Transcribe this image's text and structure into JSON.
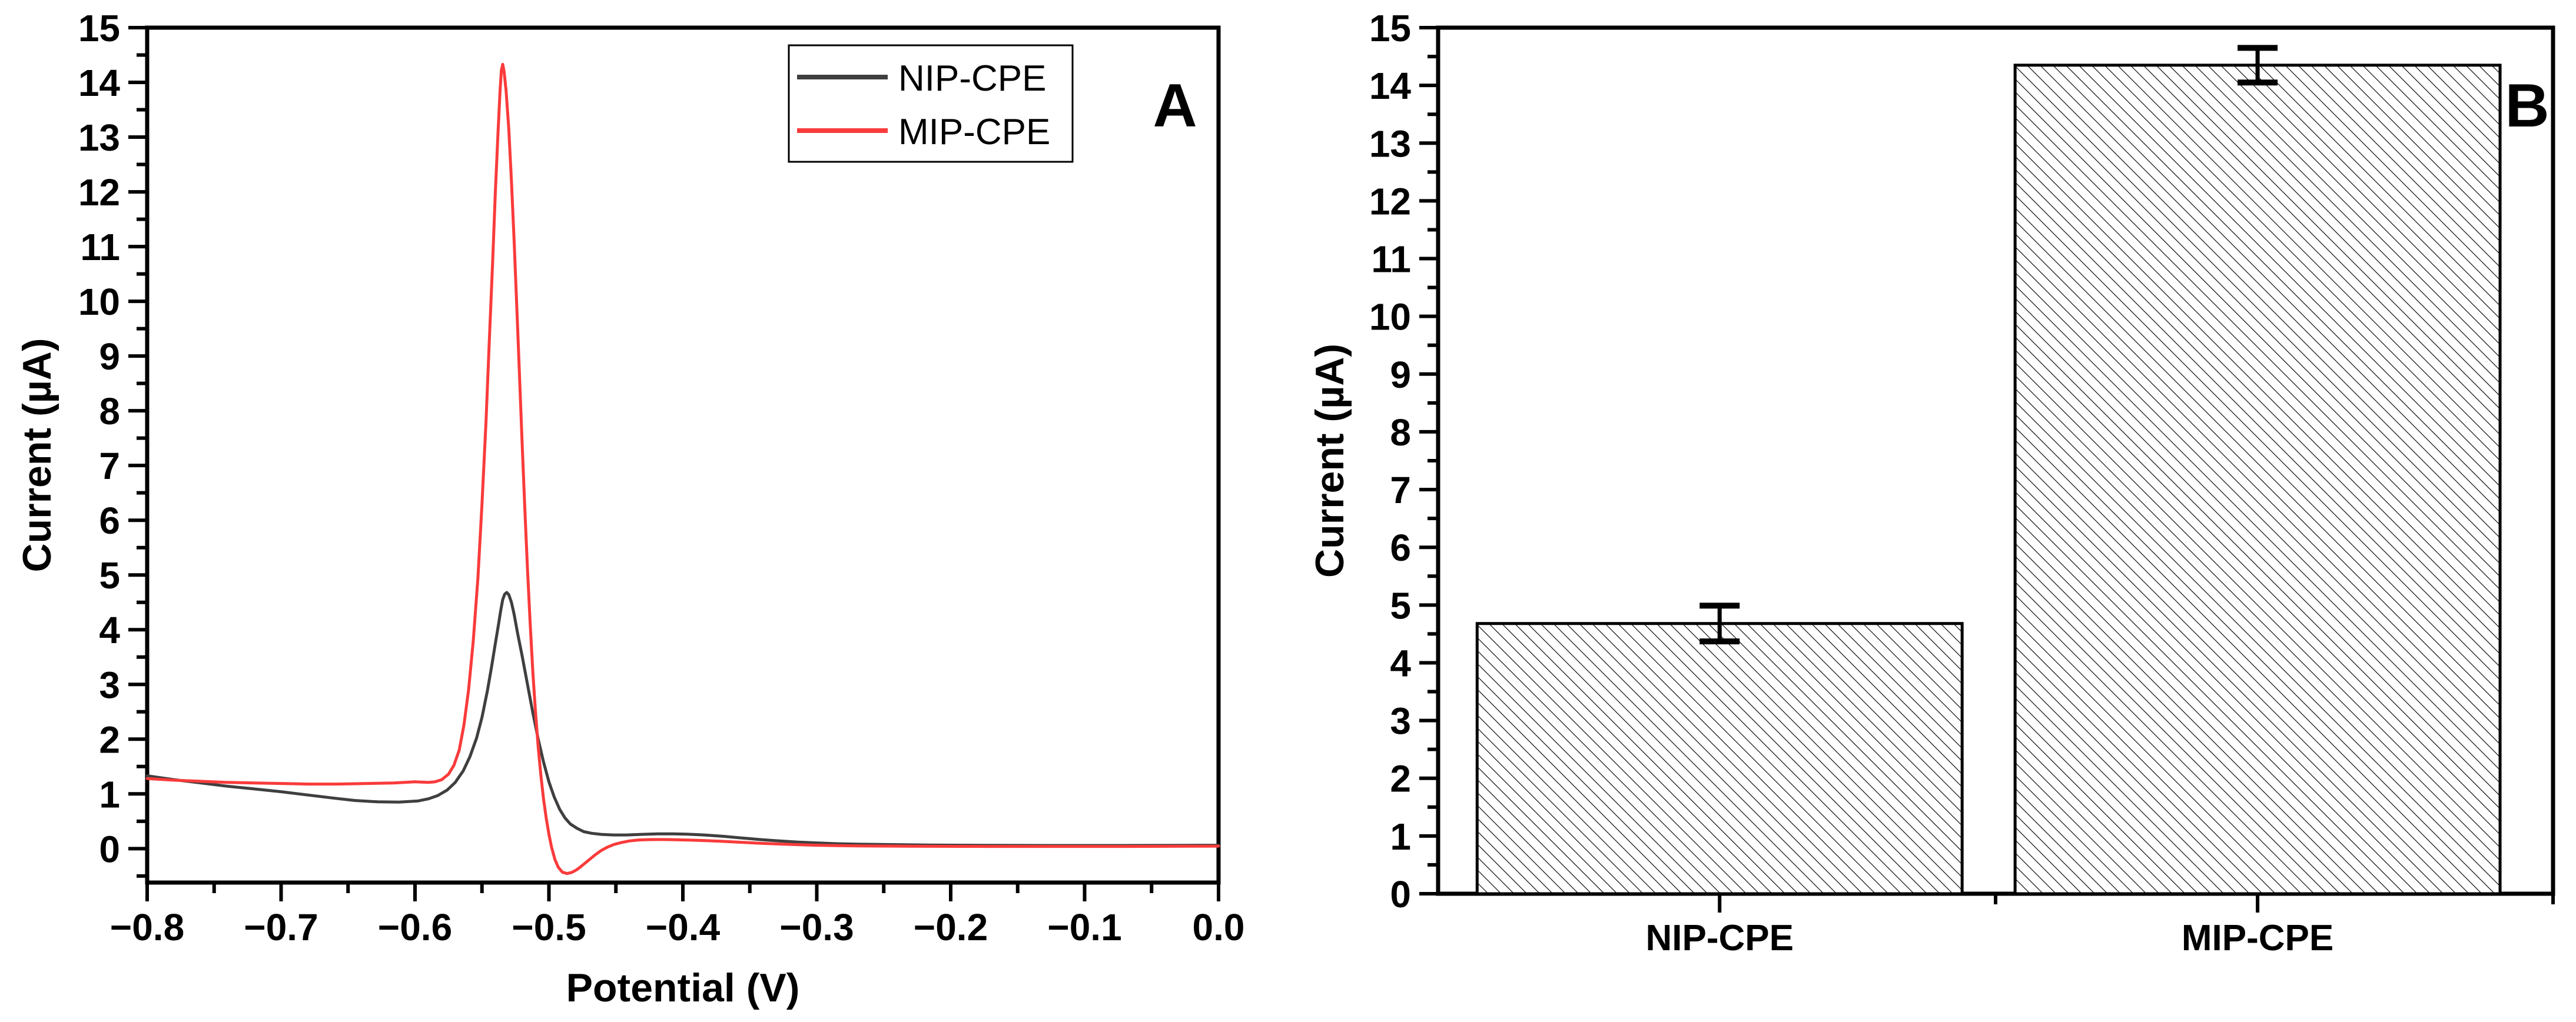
{
  "figure": {
    "background": "#ffffff",
    "panelA": {
      "panel_letter": "A",
      "x_axis_title": "Potential (V)",
      "y_axis_title": "Current (µA)",
      "x_tick_labels": [
        "−0.8",
        "−0.7",
        "−0.6",
        "−0.5",
        "−0.4",
        "−0.3",
        "−0.2",
        "−0.1",
        "0.0"
      ],
      "y_tick_labels": [
        "0",
        "1",
        "2",
        "3",
        "4",
        "5",
        "6",
        "7",
        "8",
        "9",
        "10",
        "11",
        "12",
        "13",
        "14",
        "15"
      ],
      "legend": {
        "entries": [
          {
            "label": "NIP-CPE",
            "color": "#3f3f3f"
          },
          {
            "label": "MIP-CPE",
            "color": "#f93b3b"
          }
        ]
      }
    },
    "panelB": {
      "panel_letter": "B",
      "y_axis_title": "Current (µA)",
      "y_tick_labels": [
        "0",
        "1",
        "2",
        "3",
        "4",
        "5",
        "6",
        "7",
        "8",
        "9",
        "10",
        "11",
        "12",
        "13",
        "14",
        "15"
      ],
      "category_labels": [
        "NIP-CPE",
        "MIP-CPE"
      ]
    }
  },
  "chart_data": [
    {
      "type": "line",
      "panel": "A",
      "title": "",
      "xlabel": "Potential (V)",
      "ylabel": "Current (µA)",
      "xlim": [
        -0.8,
        0.0
      ],
      "ylim": [
        -0.62,
        15
      ],
      "xticks": [
        -0.8,
        -0.7,
        -0.6,
        -0.5,
        -0.4,
        -0.3,
        -0.2,
        -0.1,
        0.0
      ],
      "yticks": [
        0,
        1,
        2,
        3,
        4,
        5,
        6,
        7,
        8,
        9,
        10,
        11,
        12,
        13,
        14,
        15
      ],
      "minor_x_step": 0.05,
      "minor_y_step": 0.5,
      "grid": false,
      "legend_position": "top-left",
      "series": [
        {
          "name": "NIP-CPE",
          "color": "#3f3f3f",
          "peak": {
            "x": -0.53,
            "y": 4.68
          },
          "points": [
            [
              -0.8,
              1.33
            ],
            [
              -0.78,
              1.26
            ],
            [
              -0.76,
              1.2
            ],
            [
              -0.74,
              1.14
            ],
            [
              -0.72,
              1.09
            ],
            [
              -0.7,
              1.04
            ],
            [
              -0.68,
              0.98
            ],
            [
              -0.66,
              0.92
            ],
            [
              -0.645,
              0.88
            ],
            [
              -0.628,
              0.855
            ],
            [
              -0.612,
              0.85
            ],
            [
              -0.598,
              0.87
            ],
            [
              -0.59,
              0.91
            ],
            [
              -0.583,
              0.97
            ],
            [
              -0.576,
              1.07
            ],
            [
              -0.57,
              1.21
            ],
            [
              -0.564,
              1.42
            ],
            [
              -0.559,
              1.68
            ],
            [
              -0.554,
              2.02
            ],
            [
              -0.55,
              2.4
            ],
            [
              -0.546,
              2.88
            ],
            [
              -0.543,
              3.3
            ],
            [
              -0.54,
              3.75
            ],
            [
              -0.5375,
              4.12
            ],
            [
              -0.536,
              4.35
            ],
            [
              -0.5345,
              4.55
            ],
            [
              -0.533,
              4.65
            ],
            [
              -0.5315,
              4.68
            ],
            [
              -0.53,
              4.64
            ],
            [
              -0.528,
              4.5
            ],
            [
              -0.526,
              4.28
            ],
            [
              -0.5235,
              3.95
            ],
            [
              -0.52,
              3.52
            ],
            [
              -0.516,
              3.0
            ],
            [
              -0.512,
              2.48
            ],
            [
              -0.508,
              2.0
            ],
            [
              -0.504,
              1.58
            ],
            [
              -0.5,
              1.22
            ],
            [
              -0.496,
              0.94
            ],
            [
              -0.492,
              0.72
            ],
            [
              -0.488,
              0.56
            ],
            [
              -0.484,
              0.45
            ],
            [
              -0.479,
              0.37
            ],
            [
              -0.474,
              0.31
            ],
            [
              -0.468,
              0.28
            ],
            [
              -0.461,
              0.26
            ],
            [
              -0.452,
              0.25
            ],
            [
              -0.442,
              0.25
            ],
            [
              -0.431,
              0.26
            ],
            [
              -0.419,
              0.27
            ],
            [
              -0.408,
              0.27
            ],
            [
              -0.397,
              0.265
            ],
            [
              -0.384,
              0.25
            ],
            [
              -0.37,
              0.225
            ],
            [
              -0.356,
              0.195
            ],
            [
              -0.342,
              0.165
            ],
            [
              -0.328,
              0.14
            ],
            [
              -0.314,
              0.12
            ],
            [
              -0.3,
              0.105
            ],
            [
              -0.285,
              0.09
            ],
            [
              -0.27,
              0.082
            ],
            [
              -0.252,
              0.075
            ],
            [
              -0.234,
              0.07
            ],
            [
              -0.216,
              0.066
            ],
            [
              -0.196,
              0.063
            ],
            [
              -0.172,
              0.06
            ],
            [
              -0.148,
              0.058
            ],
            [
              -0.124,
              0.057
            ],
            [
              -0.1,
              0.057
            ],
            [
              -0.075,
              0.057
            ],
            [
              -0.05,
              0.058
            ],
            [
              -0.025,
              0.06
            ],
            [
              0.0,
              0.062
            ]
          ]
        },
        {
          "name": "MIP-CPE",
          "color": "#f93b3b",
          "peak": {
            "x": -0.535,
            "y": 14.33
          },
          "points": [
            [
              -0.8,
              1.28
            ],
            [
              -0.78,
              1.25
            ],
            [
              -0.76,
              1.23
            ],
            [
              -0.74,
              1.21
            ],
            [
              -0.72,
              1.2
            ],
            [
              -0.7,
              1.19
            ],
            [
              -0.68,
              1.18
            ],
            [
              -0.658,
              1.18
            ],
            [
              -0.636,
              1.19
            ],
            [
              -0.616,
              1.2
            ],
            [
              -0.6,
              1.22
            ],
            [
              -0.59,
              1.21
            ],
            [
              -0.585,
              1.22
            ],
            [
              -0.58,
              1.26
            ],
            [
              -0.575,
              1.36
            ],
            [
              -0.571,
              1.52
            ],
            [
              -0.567,
              1.8
            ],
            [
              -0.5635,
              2.25
            ],
            [
              -0.56,
              2.9
            ],
            [
              -0.5565,
              3.8
            ],
            [
              -0.553,
              4.95
            ],
            [
              -0.55,
              6.3
            ],
            [
              -0.547,
              7.8
            ],
            [
              -0.5445,
              9.3
            ],
            [
              -0.542,
              10.75
            ],
            [
              -0.54,
              12.0
            ],
            [
              -0.538,
              13.1
            ],
            [
              -0.5365,
              13.85
            ],
            [
              -0.5355,
              14.22
            ],
            [
              -0.5345,
              14.33
            ],
            [
              -0.5335,
              14.2
            ],
            [
              -0.532,
              13.85
            ],
            [
              -0.53,
              13.15
            ],
            [
              -0.528,
              12.2
            ],
            [
              -0.526,
              11.1
            ],
            [
              -0.524,
              9.9
            ],
            [
              -0.522,
              8.65
            ],
            [
              -0.52,
              7.4
            ],
            [
              -0.518,
              6.2
            ],
            [
              -0.516,
              5.1
            ],
            [
              -0.514,
              4.1
            ],
            [
              -0.512,
              3.22
            ],
            [
              -0.51,
              2.48
            ],
            [
              -0.508,
              1.85
            ],
            [
              -0.506,
              1.33
            ],
            [
              -0.504,
              0.9
            ],
            [
              -0.502,
              0.55
            ],
            [
              -0.5,
              0.26
            ],
            [
              -0.498,
              0.02
            ],
            [
              -0.4955,
              -0.2
            ],
            [
              -0.493,
              -0.34
            ],
            [
              -0.49,
              -0.43
            ],
            [
              -0.4865,
              -0.455
            ],
            [
              -0.483,
              -0.435
            ],
            [
              -0.4795,
              -0.39
            ],
            [
              -0.476,
              -0.325
            ],
            [
              -0.4725,
              -0.255
            ],
            [
              -0.469,
              -0.185
            ],
            [
              -0.465,
              -0.105
            ],
            [
              -0.461,
              -0.035
            ],
            [
              -0.4565,
              0.025
            ],
            [
              -0.4515,
              0.075
            ],
            [
              -0.446,
              0.11
            ],
            [
              -0.44,
              0.14
            ],
            [
              -0.433,
              0.158
            ],
            [
              -0.425,
              0.165
            ],
            [
              -0.416,
              0.166
            ],
            [
              -0.406,
              0.163
            ],
            [
              -0.396,
              0.157
            ],
            [
              -0.384,
              0.148
            ],
            [
              -0.37,
              0.133
            ],
            [
              -0.356,
              0.115
            ],
            [
              -0.342,
              0.098
            ],
            [
              -0.328,
              0.084
            ],
            [
              -0.314,
              0.072
            ],
            [
              -0.3,
              0.062
            ],
            [
              -0.285,
              0.055
            ],
            [
              -0.268,
              0.05
            ],
            [
              -0.25,
              0.046
            ],
            [
              -0.232,
              0.044
            ],
            [
              -0.214,
              0.042
            ],
            [
              -0.195,
              0.041
            ],
            [
              -0.172,
              0.04
            ],
            [
              -0.148,
              0.04
            ],
            [
              -0.124,
              0.04
            ],
            [
              -0.1,
              0.04
            ],
            [
              -0.075,
              0.04
            ],
            [
              -0.05,
              0.041
            ],
            [
              -0.025,
              0.043
            ],
            [
              0.0,
              0.045
            ]
          ]
        }
      ]
    },
    {
      "type": "bar",
      "panel": "B",
      "title": "",
      "xlabel": "",
      "ylabel": "Current (µA)",
      "ylim": [
        0,
        15
      ],
      "yticks": [
        0,
        1,
        2,
        3,
        4,
        5,
        6,
        7,
        8,
        9,
        10,
        11,
        12,
        13,
        14,
        15
      ],
      "minor_y_step": 0.5,
      "grid": false,
      "categories": [
        "NIP-CPE",
        "MIP-CPE"
      ],
      "values": [
        4.68,
        14.35
      ],
      "errors": [
        0.31,
        0.3
      ],
      "bar_fill": "white-diagonal-hatch",
      "bar_edge_color": "#000000"
    }
  ]
}
